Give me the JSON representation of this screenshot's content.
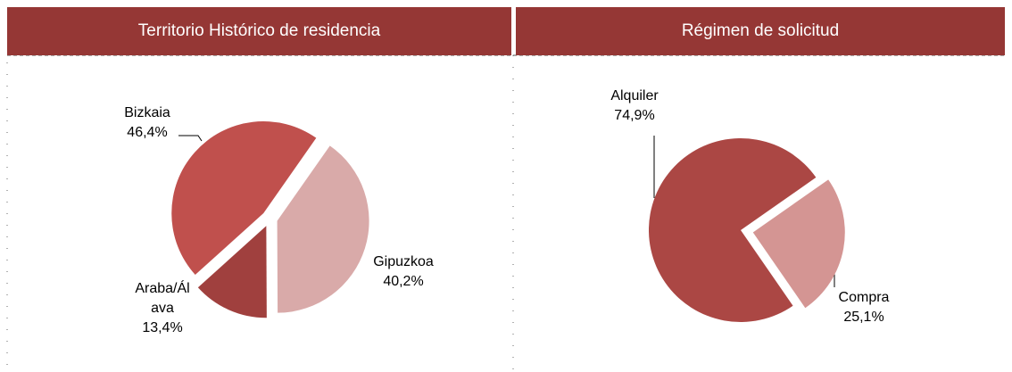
{
  "chart_data": [
    {
      "type": "pie",
      "title": "Territorio Histórico de residencia",
      "categories": [
        "Gipuzkoa",
        "Araba/Álava",
        "Bizkaia"
      ],
      "values": [
        40.2,
        13.4,
        46.4
      ],
      "value_labels": [
        "40,2%",
        "13,4%",
        "46,4%"
      ],
      "colors": [
        "#d9aaa9",
        "#a0403e",
        "#c0504d"
      ]
    },
    {
      "type": "pie",
      "title": "Régimen de solicitud",
      "categories": [
        "Compra",
        "Alquiler"
      ],
      "values": [
        25.1,
        74.9
      ],
      "value_labels": [
        "25,1%",
        "74,9%"
      ],
      "colors": [
        "#d49593",
        "#ab4744"
      ]
    }
  ]
}
